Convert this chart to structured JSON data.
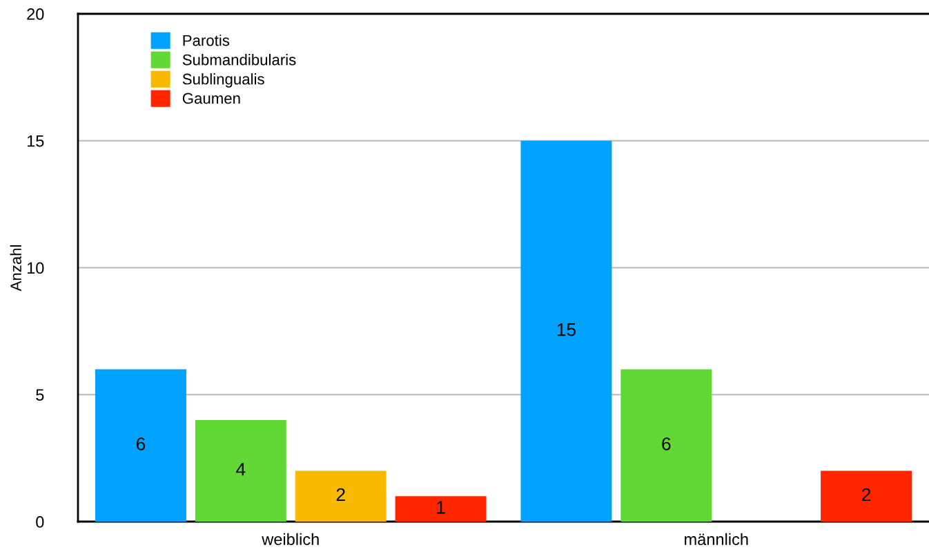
{
  "chart_data": {
    "type": "bar",
    "ylabel": "Anzahl",
    "categories": [
      "weiblich",
      "männlich"
    ],
    "series": [
      {
        "name": "Parotis",
        "color": "#00a2ff",
        "values": [
          6,
          15
        ]
      },
      {
        "name": "Submandibularis",
        "color": "#61d836",
        "values": [
          4,
          6
        ]
      },
      {
        "name": "Sublingualis",
        "color": "#f8ba00",
        "values": [
          2,
          null
        ]
      },
      {
        "name": "Gaumen",
        "color": "#ff2600",
        "values": [
          1,
          2
        ]
      }
    ],
    "ylim": [
      0,
      20
    ],
    "yticks": [
      0,
      5,
      10,
      15,
      20
    ],
    "grid": "y",
    "legend": "top left",
    "data_labels": true
  }
}
